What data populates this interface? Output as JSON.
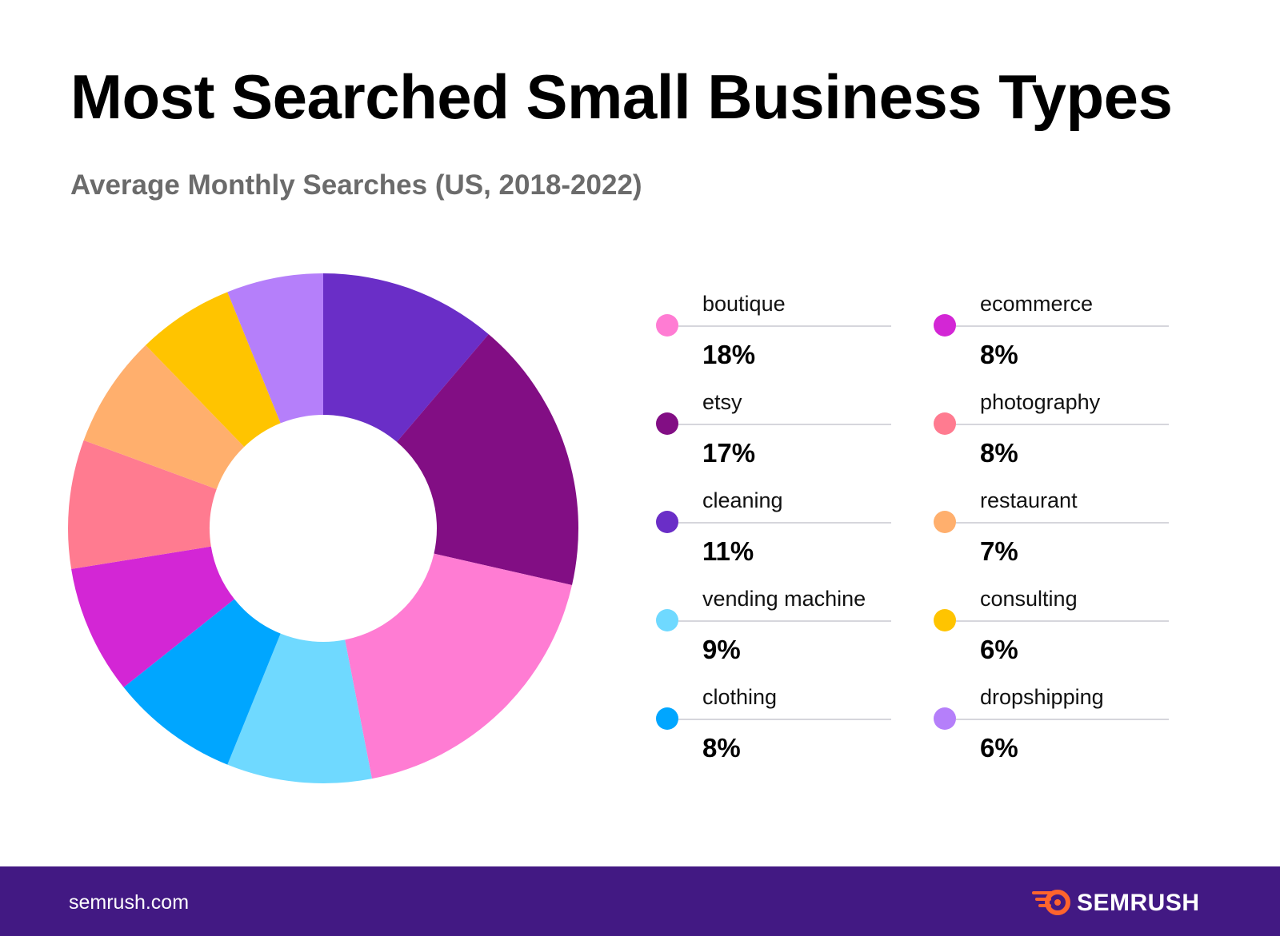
{
  "header": {
    "title": "Most Searched Small Business Types",
    "subtitle": "Average Monthly Searches (US, 2018-2022)"
  },
  "chart_data": {
    "type": "pie",
    "title": "Most Searched Small Business Types",
    "subtitle": "Average Monthly Searches (US, 2018-2022)",
    "legend_position": "right",
    "categories": [
      "cleaning",
      "etsy",
      "boutique",
      "vending machine",
      "clothing",
      "ecommerce",
      "photography",
      "restaurant",
      "consulting",
      "dropshipping"
    ],
    "values": [
      11,
      17,
      18,
      9,
      8,
      8,
      8,
      7,
      6,
      6
    ],
    "colors": [
      "#6a2ec7",
      "#820e84",
      "#ff7cd3",
      "#6fd9ff",
      "#00a6ff",
      "#d326d5",
      "#ff7b90",
      "#ffaf6d",
      "#ffc400",
      "#b57ffa"
    ]
  },
  "legend": {
    "items": [
      {
        "label": "boutique",
        "value": "18%",
        "color": "#ff7cd3"
      },
      {
        "label": "etsy",
        "value": "17%",
        "color": "#820e84"
      },
      {
        "label": "cleaning",
        "value": "11%",
        "color": "#6a2ec7"
      },
      {
        "label": "vending machine",
        "value": "9%",
        "color": "#6fd9ff"
      },
      {
        "label": "clothing",
        "value": "8%",
        "color": "#00a6ff"
      },
      {
        "label": "ecommerce",
        "value": "8%",
        "color": "#d326d5"
      },
      {
        "label": "photography",
        "value": "8%",
        "color": "#ff7b90"
      },
      {
        "label": "restaurant",
        "value": "7%",
        "color": "#ffaf6d"
      },
      {
        "label": "consulting",
        "value": "6%",
        "color": "#ffc400"
      },
      {
        "label": "dropshipping",
        "value": "6%",
        "color": "#b57ffa"
      }
    ]
  },
  "footer": {
    "url": "semrush.com",
    "brand": "SEMRUSH",
    "background": "#421983",
    "logo_color": "#ff642d"
  }
}
